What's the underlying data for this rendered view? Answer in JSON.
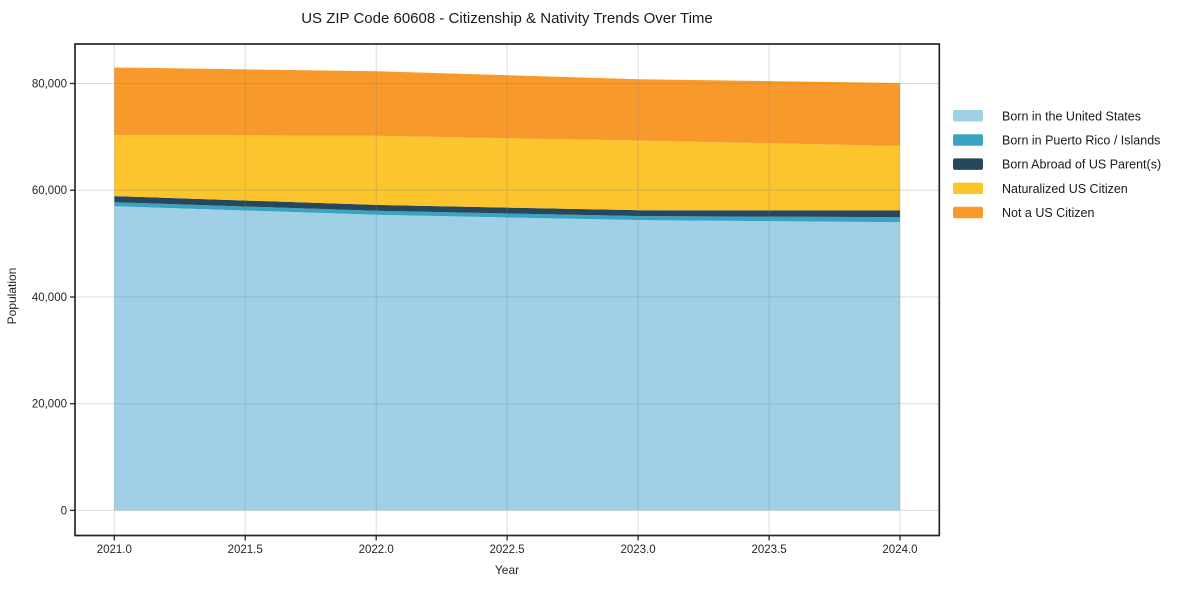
{
  "page": {
    "background_color": "#ffffff"
  },
  "chart_data": {
    "type": "area",
    "stacked": true,
    "title": "US ZIP Code 60608 - Citizenship & Nativity Trends Over Time",
    "xlabel": "Year",
    "ylabel": "Population",
    "x": [
      2021,
      2022,
      2023,
      2024
    ],
    "series": [
      {
        "name": "Born in the United States",
        "color": "#9fd0e6",
        "values": [
          57000,
          55400,
          54400,
          54000
        ]
      },
      {
        "name": "Born in Puerto Rico / Islands",
        "color": "#3aa3c2",
        "values": [
          750,
          750,
          750,
          950
        ]
      },
      {
        "name": "Born Abroad of US Parent(s)",
        "color": "#27485c",
        "values": [
          1150,
          1100,
          1100,
          1250
        ]
      },
      {
        "name": "Naturalized US Citizen",
        "color": "#fcc42d",
        "values": [
          11450,
          12950,
          13050,
          12100
        ]
      },
      {
        "name": "Not a US Citizen",
        "color": "#f8992b",
        "values": [
          12650,
          12100,
          11500,
          11800
        ]
      }
    ],
    "stack_totals": [
      83000,
      82300,
      80800,
      80100
    ],
    "xticks": {
      "values": [
        2021.0,
        2021.5,
        2022.0,
        2022.5,
        2023.0,
        2023.5,
        2024.0
      ],
      "labels": [
        "2021.0",
        "2021.5",
        "2022.0",
        "2022.5",
        "2023.0",
        "2023.5",
        "2024.0"
      ]
    },
    "yticks": {
      "values": [
        0,
        20000,
        40000,
        60000,
        80000
      ],
      "labels": [
        "0",
        "20,000",
        "40,000",
        "60,000",
        "80,000"
      ]
    },
    "xlim": [
      2020.85,
      2024.15
    ],
    "ylim": [
      -4700,
      87400
    ],
    "grid": true,
    "grid_color": "rgba(128,128,128,0.28)",
    "frame_color": "#262626",
    "legend_position": "outside-right"
  }
}
